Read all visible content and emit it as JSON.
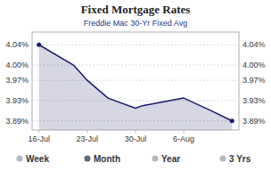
{
  "chart_data": {
    "type": "area",
    "title": "Fixed Mortgage Rates",
    "subtitle": "Freddie Mac 30-Yr Fixed Avg",
    "x": [
      0,
      5,
      7,
      10,
      14,
      15,
      21,
      25,
      28
    ],
    "values": [
      4.04,
      4.0,
      3.97,
      3.935,
      3.915,
      3.92,
      3.935,
      3.91,
      3.89
    ],
    "color": "#1a1a6e",
    "xlim": [
      -1,
      29
    ],
    "xticks": [
      {
        "value": 0,
        "label": "16-Jul"
      },
      {
        "value": 7,
        "label": "23-Jul"
      },
      {
        "value": 14,
        "label": "30-Jul"
      },
      {
        "value": 21,
        "label": "6-Aug"
      }
    ],
    "ylim": [
      3.872,
      4.065
    ],
    "yticks": [
      {
        "value": 3.89,
        "label": "3.89%"
      },
      {
        "value": 3.93,
        "label": "3.93%"
      },
      {
        "value": 3.97,
        "label": "3.97%"
      },
      {
        "value": 4.0,
        "label": "4.00%"
      },
      {
        "value": 4.04,
        "label": "4.04%"
      }
    ],
    "y2lim": [
      3.872,
      4.065
    ],
    "y2ticks": [
      {
        "value": 3.89,
        "label": "3.89%"
      },
      {
        "value": 3.93,
        "label": "3.93%"
      },
      {
        "value": 3.97,
        "label": "3.97%"
      },
      {
        "value": 4.0,
        "label": "4.00%"
      },
      {
        "value": 4.04,
        "label": "4.04%"
      }
    ],
    "grid": true,
    "annotations": [
      {
        "text": "Week",
        "color": "#b0b8c0"
      },
      {
        "text": "Month",
        "color": "#606878"
      },
      {
        "text": "Year",
        "color": "#b0b8c0"
      },
      {
        "text": "3 Yrs",
        "color": "#b0b8c0"
      }
    ]
  }
}
